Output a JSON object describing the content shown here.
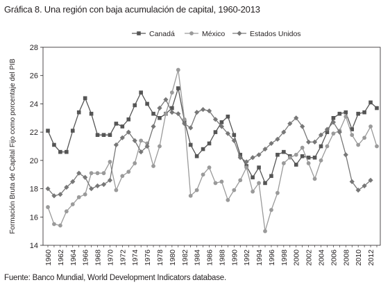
{
  "title": "Gráfica 8. Una región con baja acumulación de capital, 1960-2013",
  "source": "Fuente: Banco Mundial, World Development Indicators database.",
  "chart_data": {
    "type": "line",
    "title": "Gráfica 8. Una región con baja acumulación de capital, 1960-2013",
    "ylabel": "Formación Bruta de Capital Fijo como porcentaje del PIB",
    "xlabel": "",
    "ylim": [
      14,
      28
    ],
    "yticks": [
      14,
      16,
      18,
      20,
      22,
      24,
      26,
      28
    ],
    "xticks": [
      "1960",
      "1962",
      "1964",
      "1966",
      "1968",
      "1970",
      "1972",
      "1974",
      "1976",
      "1978",
      "1980",
      "1982",
      "1984",
      "1986",
      "1988",
      "1990",
      "1992",
      "1994",
      "1996",
      "1998",
      "2000",
      "2002",
      "2004",
      "2006",
      "2008",
      "2010",
      "2012"
    ],
    "x": [
      1960,
      1961,
      1962,
      1963,
      1964,
      1965,
      1966,
      1967,
      1968,
      1969,
      1970,
      1971,
      1972,
      1973,
      1974,
      1975,
      1976,
      1977,
      1978,
      1979,
      1980,
      1981,
      1982,
      1983,
      1984,
      1985,
      1986,
      1987,
      1988,
      1989,
      1990,
      1991,
      1992,
      1993,
      1994,
      1995,
      1996,
      1997,
      1998,
      1999,
      2000,
      2001,
      2002,
      2003,
      2004,
      2005,
      2006,
      2007,
      2008,
      2009,
      2010,
      2011,
      2012,
      2013
    ],
    "legend": {
      "position": "top",
      "entries": [
        "Canadá",
        "México",
        "Estados Unidos"
      ]
    },
    "grid": false,
    "series": [
      {
        "name": "Canadá",
        "marker": "square",
        "color": "#555555",
        "values": [
          22.1,
          21.1,
          20.6,
          20.6,
          22.1,
          23.4,
          24.4,
          23.3,
          21.8,
          21.8,
          21.8,
          22.6,
          22.4,
          22.9,
          23.9,
          24.8,
          24.0,
          23.3,
          23.0,
          23.3,
          23.7,
          25.1,
          22.8,
          21.1,
          20.3,
          20.8,
          21.2,
          22.0,
          22.7,
          23.1,
          21.8,
          20.4,
          19.6,
          18.8,
          19.5,
          18.4,
          18.9,
          20.4,
          20.6,
          20.3,
          19.7,
          20.3,
          20.2,
          20.2,
          21.0,
          22.0,
          23.0,
          23.3,
          23.4,
          22.2,
          23.3,
          23.4,
          24.1,
          23.7
        ]
      },
      {
        "name": "México",
        "marker": "circle",
        "color": "#9a9a9a",
        "values": [
          16.7,
          15.5,
          15.4,
          16.4,
          16.9,
          17.4,
          17.6,
          19.1,
          19.1,
          19.1,
          19.9,
          17.9,
          18.9,
          19.2,
          19.8,
          21.4,
          21.2,
          19.6,
          21.0,
          23.3,
          24.8,
          26.4,
          22.9,
          17.5,
          17.9,
          19.0,
          19.5,
          18.4,
          18.5,
          17.2,
          17.9,
          18.6,
          19.5,
          17.8,
          18.4,
          15.0,
          16.5,
          17.7,
          19.8,
          20.2,
          20.4,
          20.9,
          19.8,
          18.7,
          20.0,
          21.0,
          21.9,
          22.1,
          23.1,
          21.8,
          21.1,
          21.6,
          22.4,
          21.0
        ]
      },
      {
        "name": "Estados Unidos",
        "marker": "diamond",
        "color": "#777777",
        "values": [
          18.0,
          17.5,
          17.6,
          18.1,
          18.5,
          19.1,
          18.8,
          18.0,
          18.2,
          18.3,
          18.6,
          21.1,
          21.6,
          22.0,
          21.4,
          20.6,
          21.0,
          22.4,
          23.7,
          24.3,
          23.4,
          23.3,
          22.6,
          22.3,
          23.4,
          23.6,
          23.5,
          22.9,
          22.4,
          21.9,
          21.4,
          20.2,
          19.9,
          20.2,
          20.4,
          20.8,
          21.2,
          21.5,
          22.0,
          22.6,
          23.0,
          22.4,
          21.3,
          21.3,
          21.8,
          22.2,
          22.7,
          22.0,
          20.4,
          18.5,
          17.9,
          18.2,
          18.6,
          null
        ]
      }
    ]
  }
}
